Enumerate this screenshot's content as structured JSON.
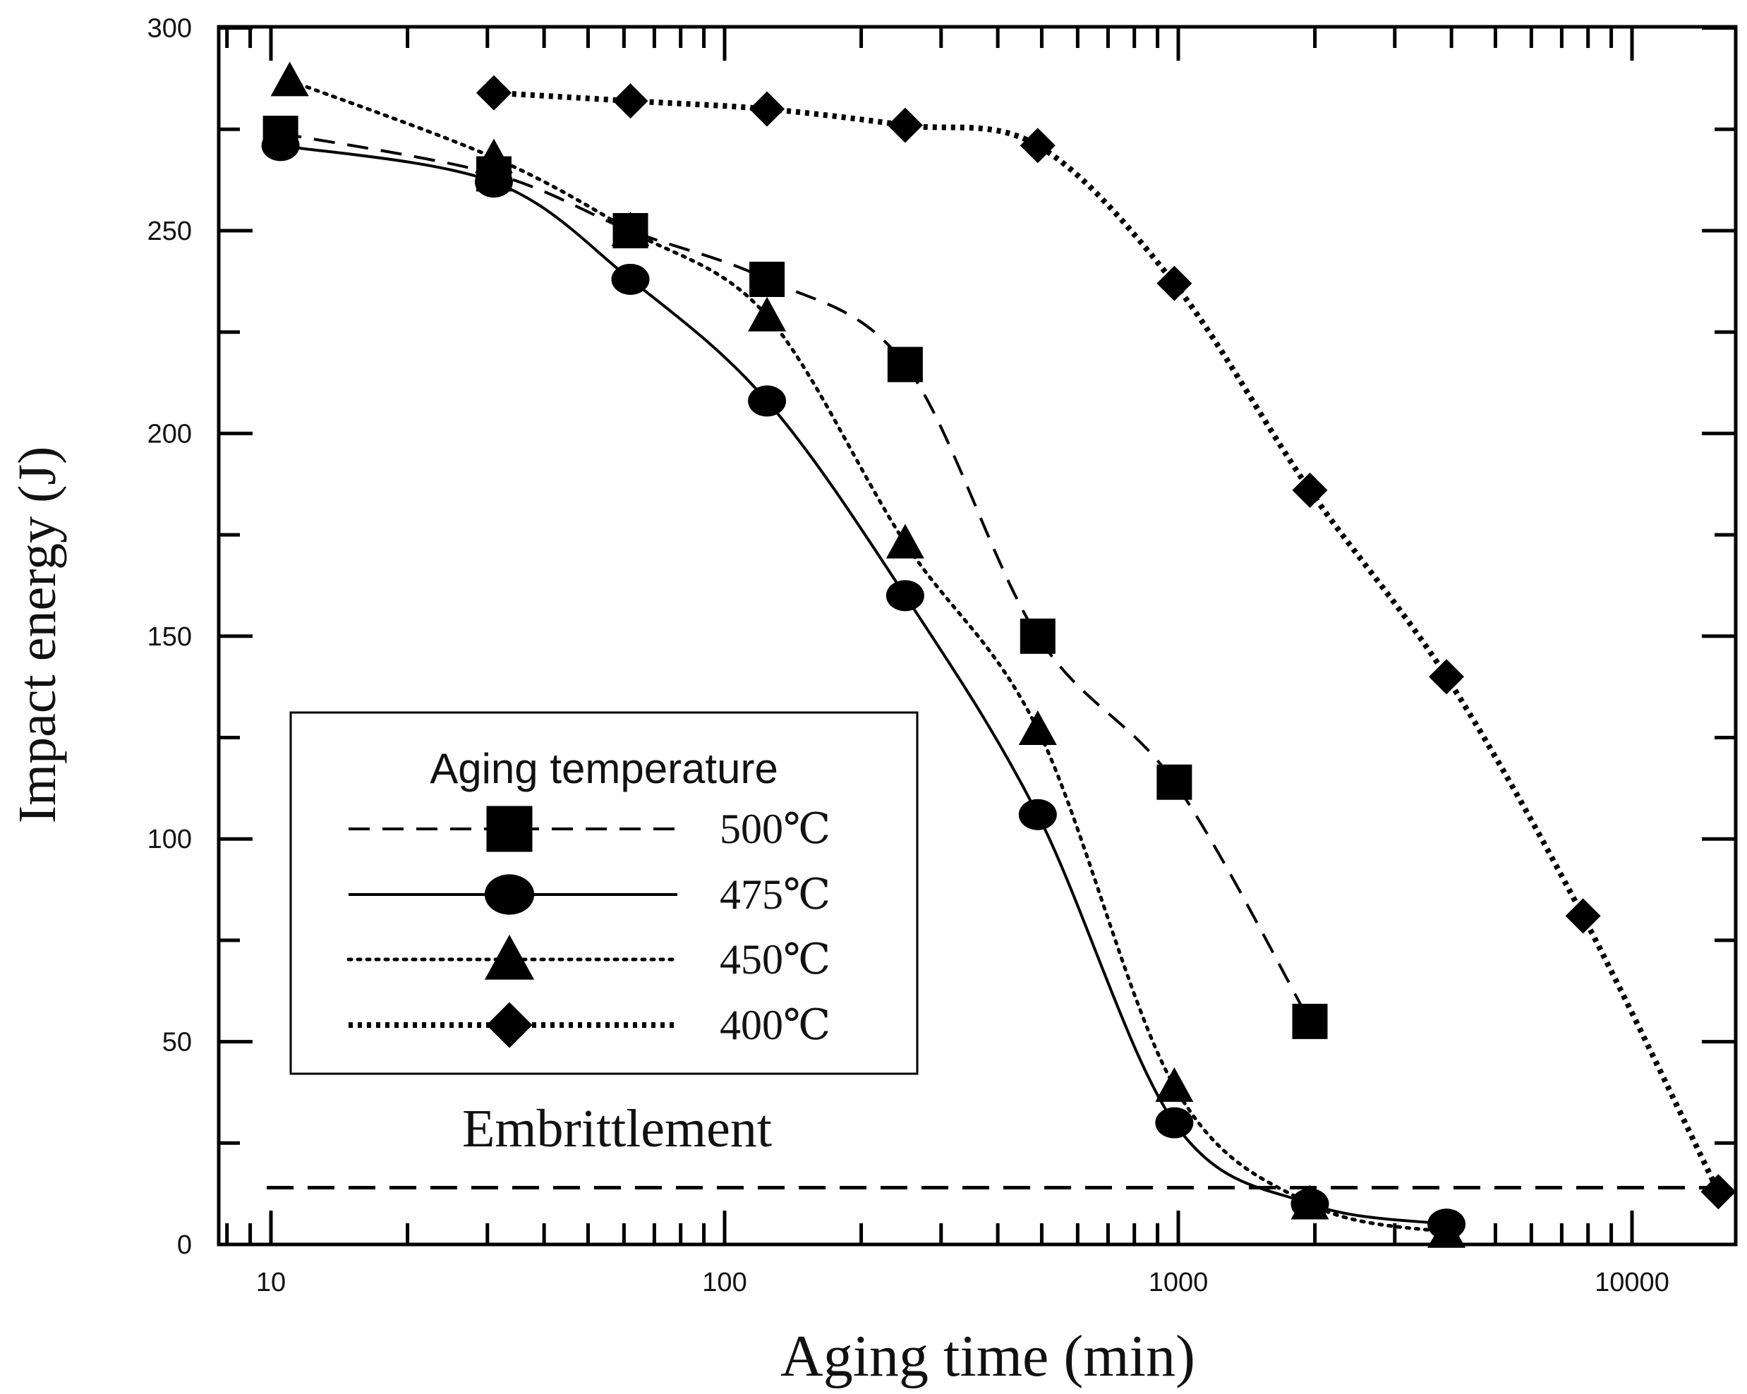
{
  "chart_data": {
    "type": "line",
    "title": "",
    "xlabel": "Aging time (min)",
    "ylabel": "Impact energy (J)",
    "xscale": "log",
    "xlim": [
      8,
      17000
    ],
    "ylim": [
      0,
      300
    ],
    "x_ticks": [
      10,
      100,
      1000,
      10000
    ],
    "x_tick_labels": [
      "10",
      "100",
      "1000",
      "10000"
    ],
    "y_ticks": [
      0,
      50,
      100,
      150,
      200,
      250,
      300
    ],
    "y_tick_labels": [
      "0",
      "50",
      "100",
      "150",
      "200",
      "250",
      "300"
    ],
    "legend": {
      "title": "Aging temperature",
      "position": "lower-left"
    },
    "series": [
      {
        "name": "500℃",
        "marker": "square",
        "line": "dashed",
        "points": [
          [
            10.5,
            274
          ],
          [
            31,
            264
          ],
          [
            62,
            250
          ],
          [
            124,
            238
          ],
          [
            250,
            217
          ],
          [
            490,
            150
          ],
          [
            980,
            114
          ],
          [
            1950,
            55
          ]
        ]
      },
      {
        "name": "475℃",
        "marker": "circle",
        "line": "solid",
        "points": [
          [
            10.5,
            271
          ],
          [
            31,
            262
          ],
          [
            62,
            238
          ],
          [
            124,
            208
          ],
          [
            250,
            160
          ],
          [
            490,
            106
          ],
          [
            980,
            30
          ],
          [
            1950,
            10
          ],
          [
            3900,
            5
          ]
        ]
      },
      {
        "name": "450℃",
        "marker": "triangle",
        "line": "dotted",
        "points": [
          [
            11,
            287
          ],
          [
            31,
            268
          ],
          [
            62,
            250
          ],
          [
            124,
            229
          ],
          [
            250,
            173
          ],
          [
            490,
            127
          ],
          [
            980,
            39
          ],
          [
            1950,
            10
          ],
          [
            3900,
            3
          ]
        ]
      },
      {
        "name": "400℃",
        "marker": "diamond",
        "line": "dotted-heavy",
        "points": [
          [
            31,
            284
          ],
          [
            62,
            282
          ],
          [
            124,
            280
          ],
          [
            250,
            276
          ],
          [
            490,
            271
          ],
          [
            980,
            237
          ],
          [
            1950,
            186
          ],
          [
            3900,
            140
          ],
          [
            7800,
            81
          ],
          [
            15500,
            13
          ]
        ]
      }
    ],
    "reference_line": {
      "y": 14,
      "label": "Embrittlement",
      "style": "dashed"
    }
  }
}
